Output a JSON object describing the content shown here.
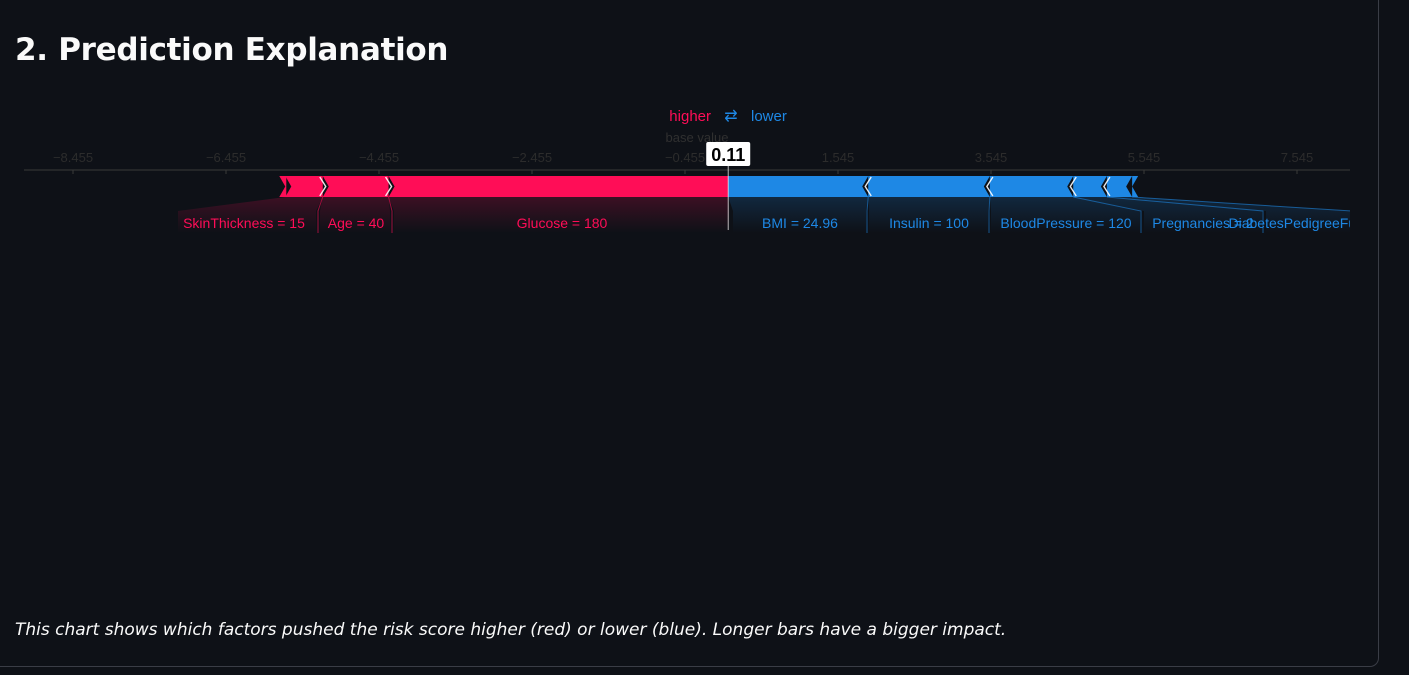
{
  "section": {
    "title": "2. Prediction Explanation",
    "caption": "This chart shows which factors pushed the risk score higher (red) or lower (blue). Longer bars have a bigger impact."
  },
  "colors": {
    "positive": "#ff0d57",
    "negative": "#1e88e5",
    "background": "#0e1117",
    "axis": "#3a3a3a"
  },
  "chart_data": {
    "type": "force",
    "legend": {
      "higher": "higher",
      "arrow": "⇄",
      "lower": "lower"
    },
    "base_value_label": "base value",
    "output_value": 0.11,
    "output_label": "0.11",
    "xlim": [
      -9.455,
      8.545
    ],
    "tick_labels": [
      "−8.455",
      "−6.455",
      "−4.455",
      "−2.455",
      "−0.455",
      "1.545",
      "3.545",
      "5.545",
      "7.545"
    ],
    "ticks": [
      -8.455,
      -6.455,
      -4.455,
      -2.455,
      -0.455,
      1.545,
      3.545,
      5.545,
      7.545
    ],
    "features": [
      {
        "label": "SkinThickness = 15",
        "side": "higher",
        "start": -5.68,
        "end": -5.19
      },
      {
        "label": "Age = 40",
        "side": "higher",
        "start": -5.19,
        "end": -4.33
      },
      {
        "label": "Glucose = 180",
        "side": "higher",
        "start": -4.33,
        "end": 0.11
      },
      {
        "label": "BMI = 24.96",
        "side": "lower",
        "start": 0.11,
        "end": 1.94
      },
      {
        "label": "Insulin = 100",
        "side": "lower",
        "start": 1.94,
        "end": 3.53
      },
      {
        "label": "BloodPressure = 120",
        "side": "lower",
        "start": 3.53,
        "end": 4.62
      },
      {
        "label": "Pregnancies = 2",
        "side": "lower",
        "start": 4.62,
        "end": 5.06
      },
      {
        "label": "DiabetesPedigreeFunction",
        "side": "lower",
        "start": 5.06,
        "end": 5.39
      }
    ]
  }
}
